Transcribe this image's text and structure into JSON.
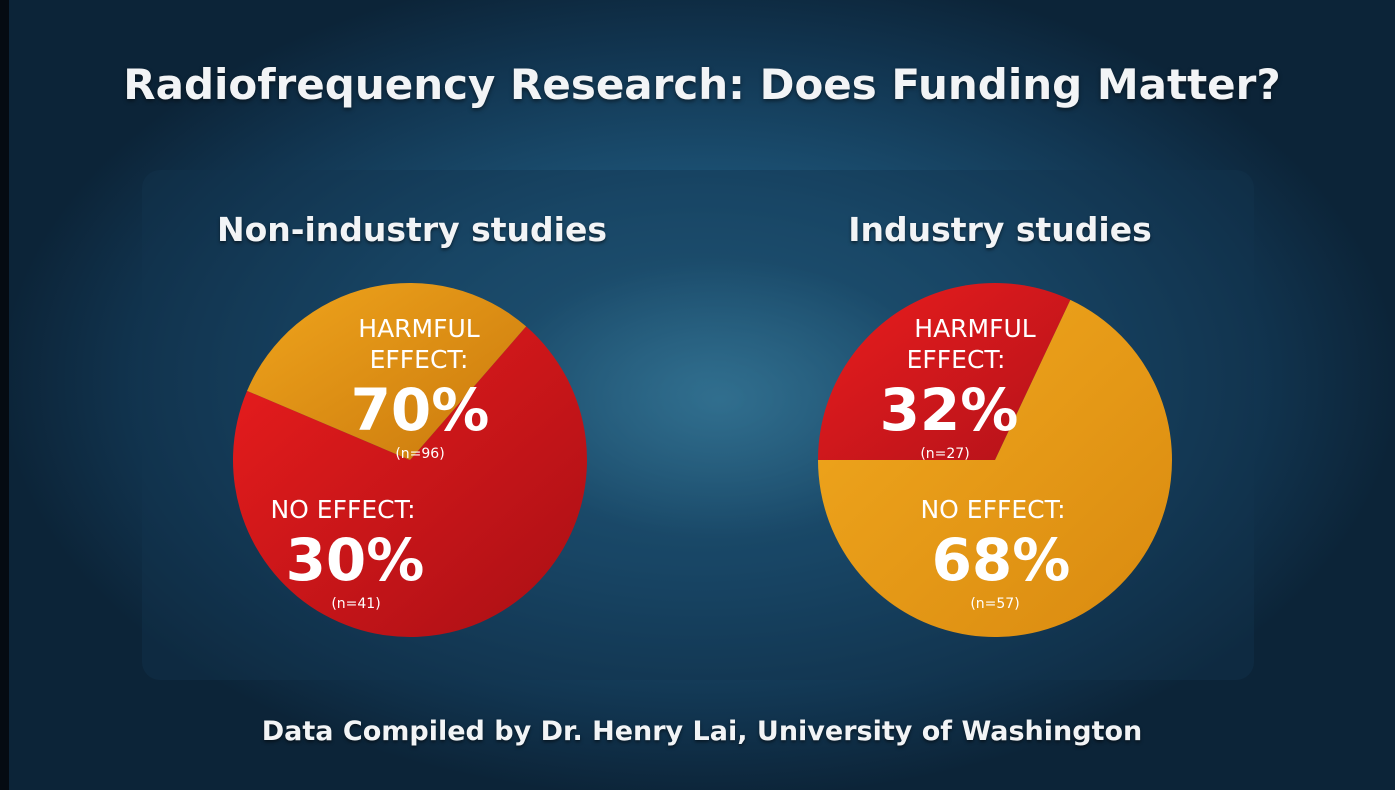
{
  "title": "Radiofrequency Research: Does Funding Matter?",
  "footer": "Data Compiled by Dr. Henry Lai, University of Washington",
  "colors": {
    "harmful": "#d9181c",
    "no_effect": "#e49a12",
    "text": "#ffffff"
  },
  "chart_data": [
    {
      "type": "pie",
      "title": "Non-industry studies",
      "slices": [
        {
          "label_line1": "HARMFUL",
          "label_line2": "EFFECT:",
          "value": 70,
          "value_text": "70%",
          "n_text": "(n=96)",
          "color": "#d9181c"
        },
        {
          "label_line1": "NO EFFECT:",
          "label_line2": "",
          "value": 30,
          "value_text": "30%",
          "n_text": "(n=41)",
          "color": "#e49a12"
        }
      ]
    },
    {
      "type": "pie",
      "title": "Industry studies",
      "slices": [
        {
          "label_line1": "HARMFUL",
          "label_line2": "EFFECT:",
          "value": 32,
          "value_text": "32%",
          "n_text": "(n=27)",
          "color": "#d9181c"
        },
        {
          "label_line1": "NO EFFECT:",
          "label_line2": "",
          "value": 68,
          "value_text": "68%",
          "n_text": "(n=57)",
          "color": "#e49a12"
        }
      ]
    }
  ]
}
